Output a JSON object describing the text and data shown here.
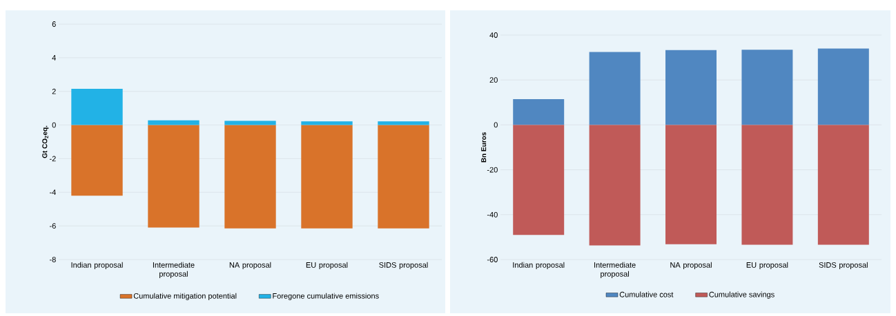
{
  "chart_data": [
    {
      "type": "bar",
      "stacked": true,
      "ylabel": "Gt CO$_{2}$eq.",
      "categories": [
        "Indian proposal",
        "Intermediate proposal",
        "NA proposal",
        "EU proposal",
        "SIDS proposal"
      ],
      "series": [
        {
          "name": "Cumulative mitigation potential",
          "color": "#d9732a",
          "values": [
            -4.2,
            -6.1,
            -6.15,
            -6.15,
            -6.15
          ]
        },
        {
          "name": "Foregone cumulative emissions",
          "color": "#22b2e6",
          "values": [
            2.15,
            0.28,
            0.25,
            0.22,
            0.22
          ]
        }
      ],
      "ylim": [
        -8,
        6
      ],
      "yticks": [
        -8,
        -6,
        -4,
        -2,
        0,
        2,
        4,
        6
      ],
      "grid": "y",
      "legend": "bottom"
    },
    {
      "type": "bar",
      "stacked": true,
      "ylabel": "Bn Euros",
      "categories": [
        "Indian proposal",
        "Intermediate proposal",
        "NA proposal",
        "EU proposal",
        "SIDS proposal"
      ],
      "series": [
        {
          "name": "Cumulative cost",
          "color": "#5087c1",
          "values": [
            11.5,
            32.5,
            33.3,
            33.5,
            34.0
          ]
        },
        {
          "name": "Cumulative savings",
          "color": "#c05a58",
          "values": [
            -49,
            -53.7,
            -53.2,
            -53.4,
            -53.4
          ]
        }
      ],
      "ylim": [
        -60,
        40
      ],
      "yticks": [
        -60,
        -40,
        -20,
        0,
        20,
        40
      ],
      "grid": "y",
      "legend": "bottom"
    }
  ]
}
